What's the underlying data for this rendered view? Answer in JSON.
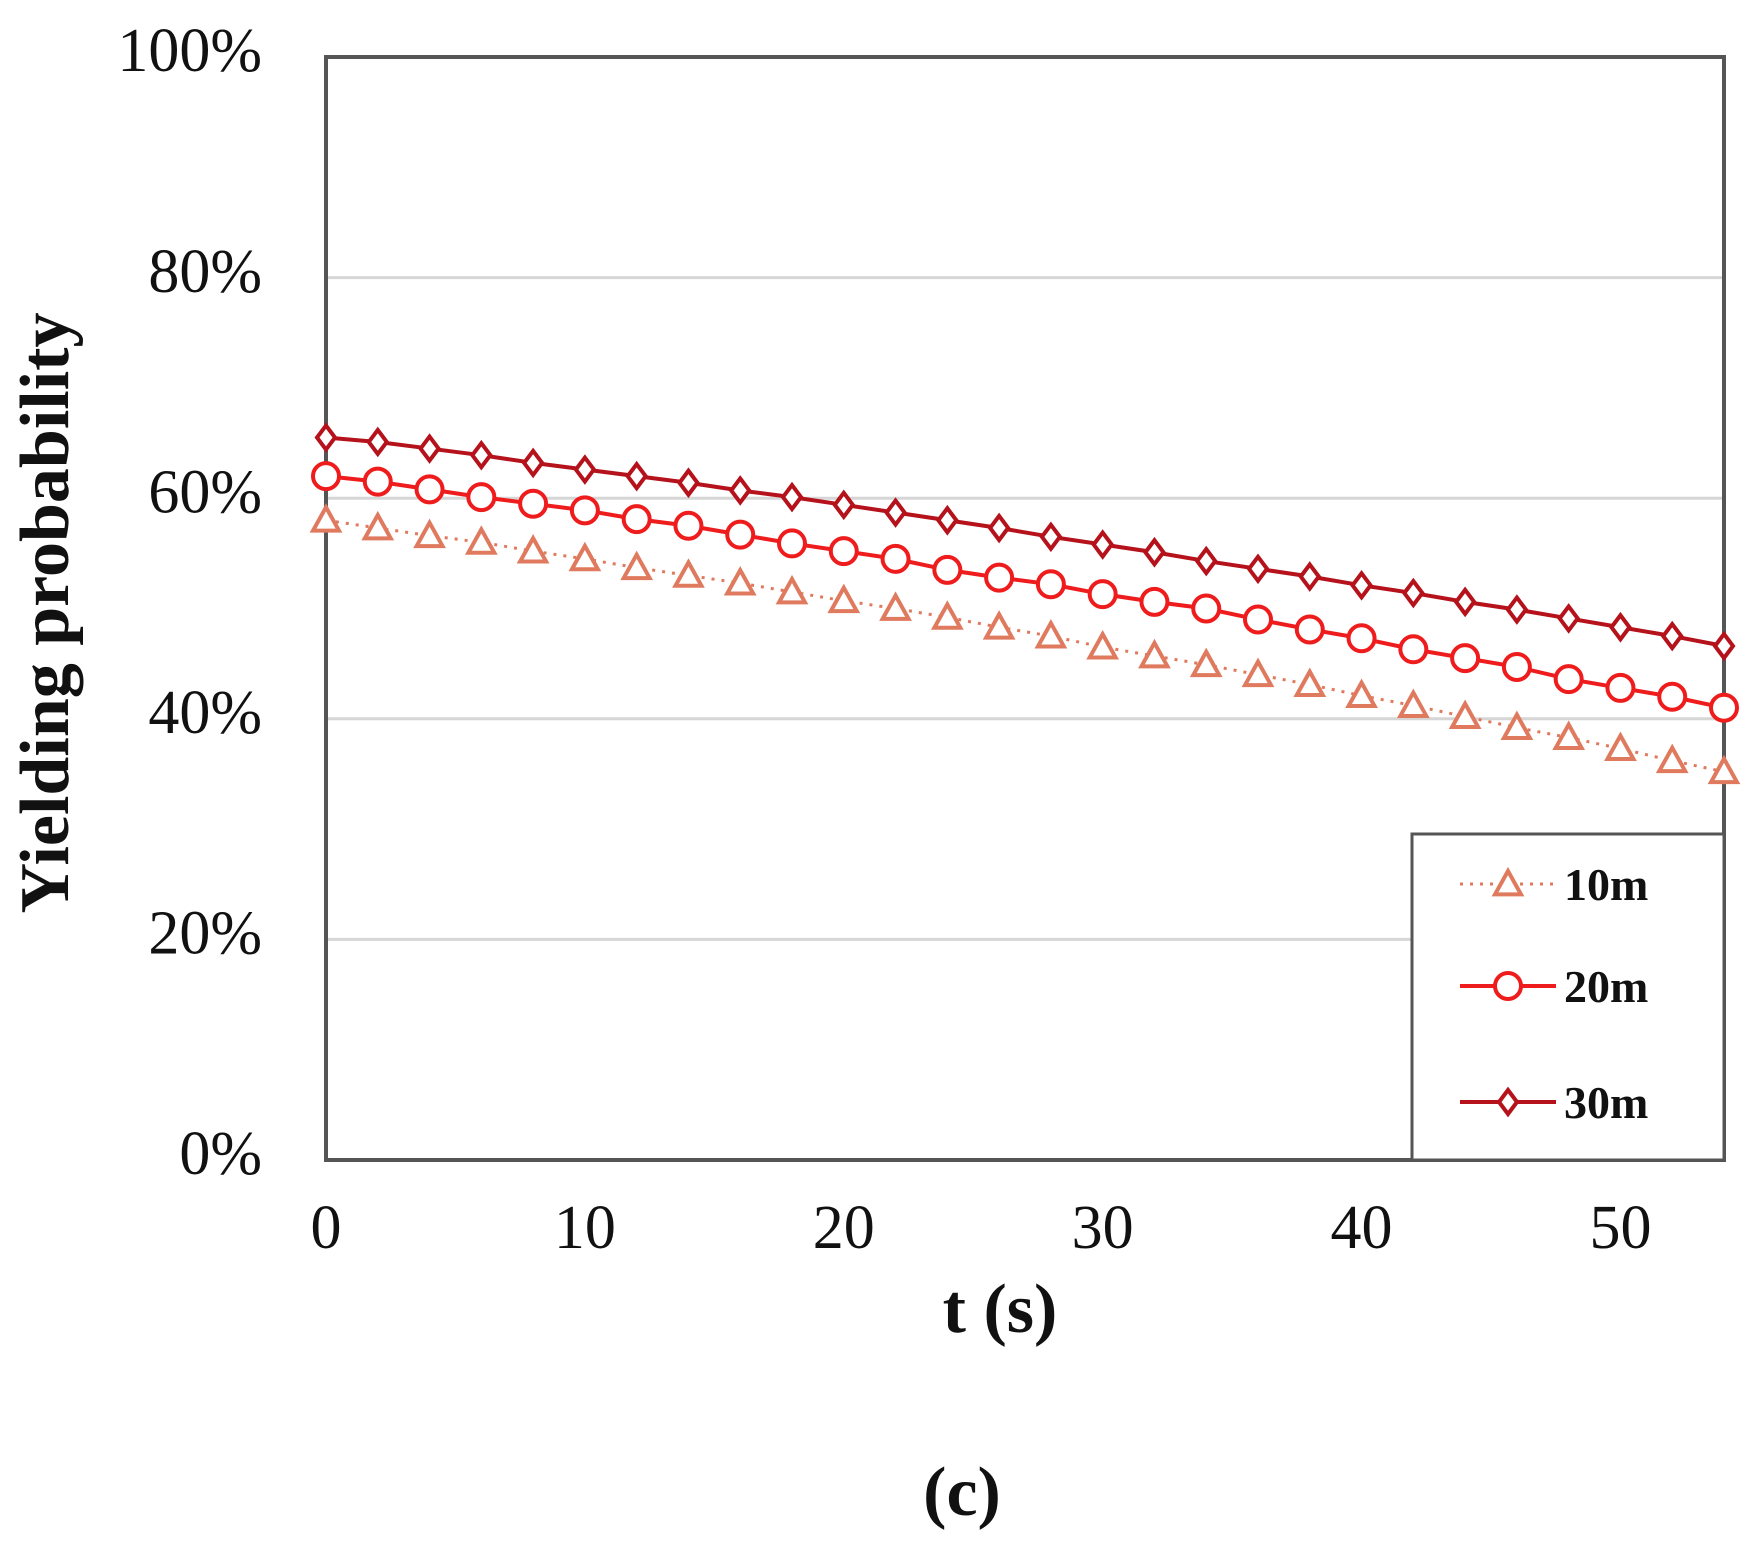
{
  "chart_data": {
    "type": "line",
    "title": "",
    "xlabel": "t (s)",
    "ylabel": "Yielding probability",
    "caption": "(c)",
    "xlim": [
      0,
      54
    ],
    "ylim": [
      0,
      100
    ],
    "x_ticks": [
      0,
      10,
      20,
      30,
      40,
      50
    ],
    "x_tick_labels": [
      "0",
      "10",
      "20",
      "30",
      "40",
      "50"
    ],
    "y_ticks": [
      0,
      20,
      40,
      60,
      80,
      100
    ],
    "y_tick_labels": [
      "0%",
      "20%",
      "40%",
      "60%",
      "80%",
      "100%"
    ],
    "grid": "horizontal",
    "legend_position": "bottom-right",
    "x": [
      0,
      2,
      4,
      6,
      8,
      10,
      12,
      14,
      16,
      18,
      20,
      22,
      24,
      26,
      28,
      30,
      32,
      34,
      36,
      38,
      40,
      42,
      44,
      46,
      48,
      50,
      52,
      54
    ],
    "series": [
      {
        "name": "10m",
        "marker": "triangle",
        "line_style": "dotted",
        "color": "#e07a5f",
        "values": [
          58.0,
          57.3,
          56.6,
          56.0,
          55.2,
          54.5,
          53.7,
          53.0,
          52.3,
          51.5,
          50.7,
          50.0,
          49.2,
          48.3,
          47.5,
          46.5,
          45.7,
          44.9,
          44.0,
          43.1,
          42.1,
          41.2,
          40.2,
          39.2,
          38.3,
          37.3,
          36.2,
          35.2
        ]
      },
      {
        "name": "20m",
        "marker": "circle",
        "line_style": "solid",
        "color": "#ee1c1c",
        "values": [
          62.0,
          61.5,
          60.8,
          60.1,
          59.5,
          58.9,
          58.1,
          57.5,
          56.7,
          55.9,
          55.2,
          54.5,
          53.5,
          52.8,
          52.2,
          51.3,
          50.6,
          50.0,
          49.0,
          48.1,
          47.3,
          46.3,
          45.5,
          44.7,
          43.6,
          42.8,
          42.0,
          41.0
        ]
      },
      {
        "name": "30m",
        "marker": "diamond",
        "line_style": "solid",
        "color": "#b5121b",
        "values": [
          65.5,
          65.1,
          64.5,
          63.9,
          63.2,
          62.6,
          62.0,
          61.4,
          60.7,
          60.1,
          59.4,
          58.7,
          58.0,
          57.3,
          56.5,
          55.8,
          55.1,
          54.3,
          53.6,
          52.9,
          52.1,
          51.4,
          50.6,
          49.9,
          49.1,
          48.3,
          47.5,
          46.6
        ]
      }
    ]
  }
}
